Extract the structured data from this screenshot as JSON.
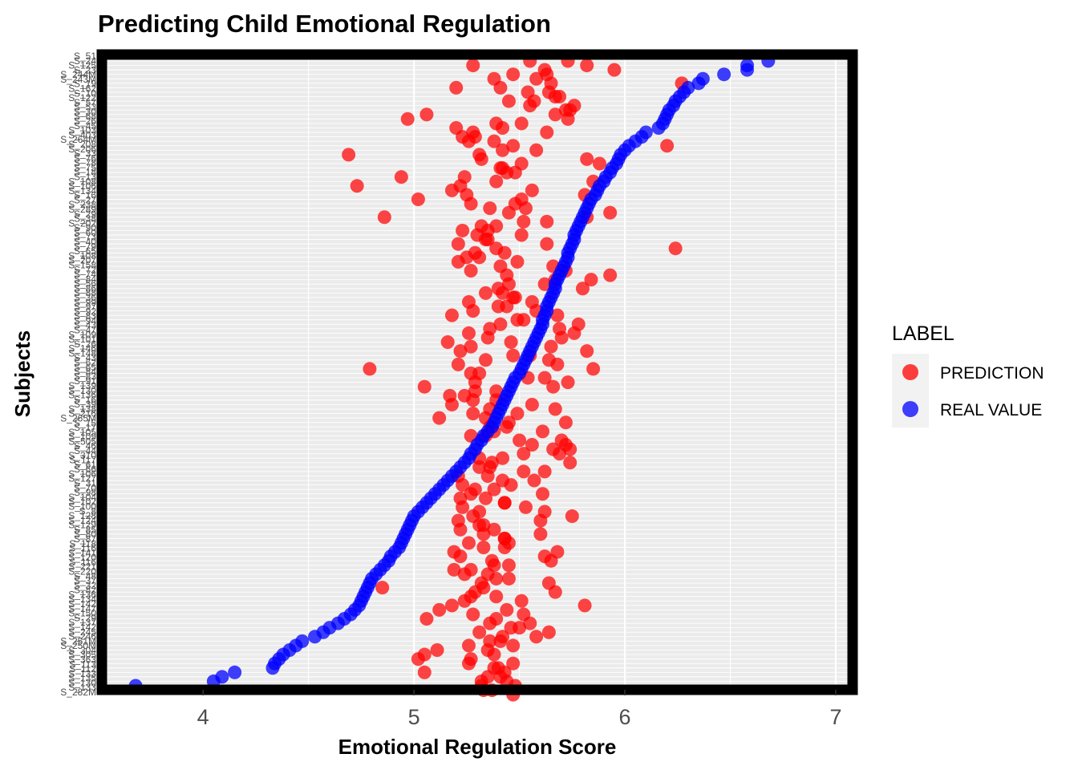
{
  "chart_data": {
    "type": "scatter",
    "title": "Predicting Child Emotional Regulation",
    "xlabel": "Emotional Regulation Score",
    "ylabel": "Subjects",
    "xlim": [
      3.52,
      7.08
    ],
    "xticks": [
      "4",
      "5",
      "6",
      "7"
    ],
    "xtick_values": [
      4,
      5,
      6,
      7
    ],
    "grid": true,
    "legend": {
      "title": "LABEL",
      "placement": "right",
      "entries": [
        {
          "label": "PREDICTION",
          "color": "#ff0000"
        },
        {
          "label": "REAL VALUE",
          "color": "#0000ff"
        }
      ]
    },
    "colors": {
      "prediction": "#ff0000",
      "real_value": "#0000ff",
      "panel_border": "#000000",
      "panel_bg": "#ebebeb"
    },
    "subject_tick_labels": [
      "S_51",
      "S_24",
      "S_125",
      "S_23",
      "S_244M",
      "S_243M",
      "S_19",
      "S_162",
      "S_10",
      "S_122",
      "S_57",
      "S_53",
      "S_30",
      "S_68",
      "S_26",
      "S_45",
      "S_103",
      "S_403",
      "S_264M",
      "S_208",
      "S_206",
      "S_33",
      "S_76",
      "S_78",
      "S_75",
      "S_18",
      "S_13",
      "S_108",
      "S_106",
      "S_134",
      "S_16",
      "S_27",
      "S_238",
      "S_289",
      "S_29",
      "S_38",
      "S_202",
      "S_90",
      "S_60",
      "S_73",
      "S_40",
      "S_79",
      "S_65",
      "S_108",
      "S_207",
      "S_158",
      "S_72",
      "S_74",
      "S_84",
      "S_56",
      "S_86",
      "S_88",
      "S_36",
      "S_99",
      "S_97",
      "S_92",
      "S_83",
      "S_94",
      "S_43",
      "S_47",
      "S_109",
      "S_101",
      "S_26",
      "S_146",
      "S_148",
      "S_43",
      "S_62",
      "S_65",
      "S_84",
      "S_83",
      "S_91",
      "S_139",
      "S_130",
      "S_136",
      "S_16",
      "S_39",
      "S_138",
      "S_216",
      "S_265M",
      "S_15",
      "S_17",
      "S_105",
      "S_109",
      "S_505",
      "S_46",
      "S_44",
      "S_310",
      "S_117",
      "S_61",
      "S_66",
      "S_106",
      "S_127",
      "S_31",
      "S_70",
      "S_98",
      "S_104",
      "S_102",
      "S_100",
      "S_8",
      "S_128",
      "S_124",
      "S_129",
      "S_85",
      "S_80",
      "S_87",
      "S_118",
      "S_116",
      "S_141",
      "S_120",
      "S_116",
      "S_221",
      "S_220",
      "S_48",
      "S_37",
      "S_32",
      "S_82",
      "S_136",
      "S_134",
      "S_142",
      "S_147",
      "S_150",
      "S_29",
      "S_137",
      "S_142",
      "S_245",
      "S_246",
      "S_251M",
      "S_250M",
      "S_304",
      "S_305",
      "S_363",
      "S_113",
      "S_112",
      "S_133",
      "S_135",
      "S_130",
      "S_133",
      "S_282M"
    ],
    "real_value": [
      6.68,
      6.58,
      6.58,
      6.47,
      6.37,
      6.35,
      6.3,
      6.28,
      6.26,
      6.24,
      6.23,
      6.21,
      6.2,
      6.19,
      6.18,
      6.16,
      6.1,
      6.08,
      6.05,
      6.02,
      6.0,
      5.98,
      5.97,
      5.96,
      5.94,
      5.93,
      5.91,
      5.9,
      5.88,
      5.87,
      5.86,
      5.84,
      5.83,
      5.82,
      5.81,
      5.8,
      5.79,
      5.78,
      5.77,
      5.76,
      5.76,
      5.75,
      5.74,
      5.73,
      5.73,
      5.72,
      5.71,
      5.7,
      5.69,
      5.68,
      5.67,
      5.67,
      5.66,
      5.65,
      5.64,
      5.63,
      5.63,
      5.62,
      5.61,
      5.61,
      5.6,
      5.59,
      5.58,
      5.57,
      5.56,
      5.55,
      5.54,
      5.53,
      5.52,
      5.51,
      5.5,
      5.48,
      5.47,
      5.46,
      5.45,
      5.44,
      5.43,
      5.42,
      5.41,
      5.4,
      5.39,
      5.38,
      5.37,
      5.35,
      5.33,
      5.32,
      5.3,
      5.29,
      5.27,
      5.26,
      5.24,
      5.22,
      5.2,
      5.18,
      5.16,
      5.14,
      5.12,
      5.1,
      5.08,
      5.06,
      5.04,
      5.02,
      5.0,
      4.99,
      4.98,
      4.97,
      4.96,
      4.95,
      4.94,
      4.93,
      4.91,
      4.89,
      4.88,
      4.86,
      4.84,
      4.82,
      4.8,
      4.79,
      4.78,
      4.77,
      4.76,
      4.75,
      4.74,
      4.72,
      4.7,
      4.67,
      4.64,
      4.6,
      4.57,
      4.53,
      4.47,
      4.44,
      4.41,
      4.38,
      4.36,
      4.34,
      4.33,
      4.15,
      4.09,
      4.05,
      3.68
    ],
    "prediction": [
      5.55,
      5.28,
      5.62,
      5.63,
      5.38,
      6.27,
      5.2,
      5.54,
      5.67,
      5.45,
      5.55,
      5.72,
      5.06,
      4.97,
      5.51,
      5.2,
      5.28,
      5.23,
      5.26,
      6.2,
      5.58,
      4.69,
      5.82,
      5.88,
      5.42,
      5.48,
      4.94,
      5.85,
      4.73,
      5.56,
      5.25,
      5.02,
      5.48,
      5.53,
      5.93,
      4.86,
      5.52,
      5.32,
      5.35,
      5.51,
      5.34,
      5.63,
      5.39,
      5.29,
      5.31,
      5.21,
      5.41,
      5.27,
      5.93,
      5.84,
      5.45,
      5.4,
      5.42,
      5.47,
      5.56,
      5.4,
      5.28,
      5.18,
      5.49,
      5.78,
      5.36,
      5.76,
      5.7,
      5.16,
      5.27,
      5.82,
      5.55,
      5.34,
      5.21,
      4.79,
      5.27,
      5.54,
      5.73,
      5.05,
      5.29,
      5.17,
      5.39,
      5.18,
      5.67,
      5.28,
      5.12,
      5.45,
      5.36,
      5.38,
      5.34,
      5.7,
      5.72,
      5.66,
      5.52,
      5.31,
      5.74,
      5.36,
      5.62,
      5.21,
      5.57,
      5.23,
      5.29,
      5.27,
      5.34,
      5.43,
      5.23,
      5.31,
      5.75,
      5.6,
      5.33,
      5.22,
      5.33,
      5.43,
      5.26,
      5.43,
      5.19,
      5.22,
      5.65,
      5.45,
      5.19,
      5.35,
      5.39,
      5.32,
      4.85,
      5.67,
      5.27,
      5.24,
      5.81,
      5.12,
      5.28,
      5.06,
      5.36,
      5.5,
      5.64,
      5.58,
      5.41,
      5.47,
      5.11,
      5.05,
      5.02,
      5.26,
      5.38,
      5.05,
      5.35,
      5.44,
      5.32,
      5.37,
      5.47
    ],
    "prediction_secondary": [
      5.73,
      5.82,
      5.95,
      5.47,
      5.58,
      5.65,
      5.41,
      5.64,
      5.69,
      5.57,
      5.76,
      5.74,
      5.67,
      5.73,
      5.39,
      5.42,
      5.63,
      5.29,
      5.38,
      5.47,
      5.42,
      5.31,
      5.32,
      5.51,
      5.41,
      5.44,
      5.24,
      5.39,
      5.22,
      5.18,
      5.81,
      5.51,
      5.27,
      5.36,
      5.45,
      5.82,
      5.63,
      5.39,
      5.23,
      5.3,
      5.35,
      5.21,
      6.24,
      5.43,
      5.25,
      5.49,
      5.66,
      5.72,
      5.44,
      5.67,
      5.62,
      5.8,
      5.34,
      5.48,
      5.26,
      5.44,
      5.58,
      5.68,
      5.52,
      5.41,
      5.69,
      5.26,
      5.35,
      5.46,
      5.65,
      5.22,
      5.47,
      5.64,
      5.68,
      5.85,
      5.31,
      5.62,
      5.29,
      5.66,
      5.39,
      5.24,
      5.28,
      5.56,
      5.36,
      5.49,
      5.34,
      5.72,
      5.44,
      5.61,
      5.27,
      5.5,
      5.56,
      5.74,
      5.69,
      5.42,
      5.37,
      5.31,
      5.52,
      5.35,
      5.42,
      5.46,
      5.38,
      5.61,
      5.22,
      5.43,
      5.53,
      5.62,
      5.28,
      5.21,
      5.31,
      5.38,
      5.6,
      5.43,
      5.45,
      5.33,
      5.68,
      5.62,
      5.37,
      5.38,
      5.27,
      5.24,
      5.45,
      5.64,
      5.33,
      5.29,
      5.39,
      5.51,
      5.18,
      5.44,
      5.52,
      5.39,
      5.55,
      5.46,
      5.31,
      5.42,
      5.36,
      5.26,
      5.35,
      5.38,
      5.27,
      5.47,
      5.4,
      5.43,
      5.41,
      5.32,
      5.48,
      5.33
    ]
  }
}
